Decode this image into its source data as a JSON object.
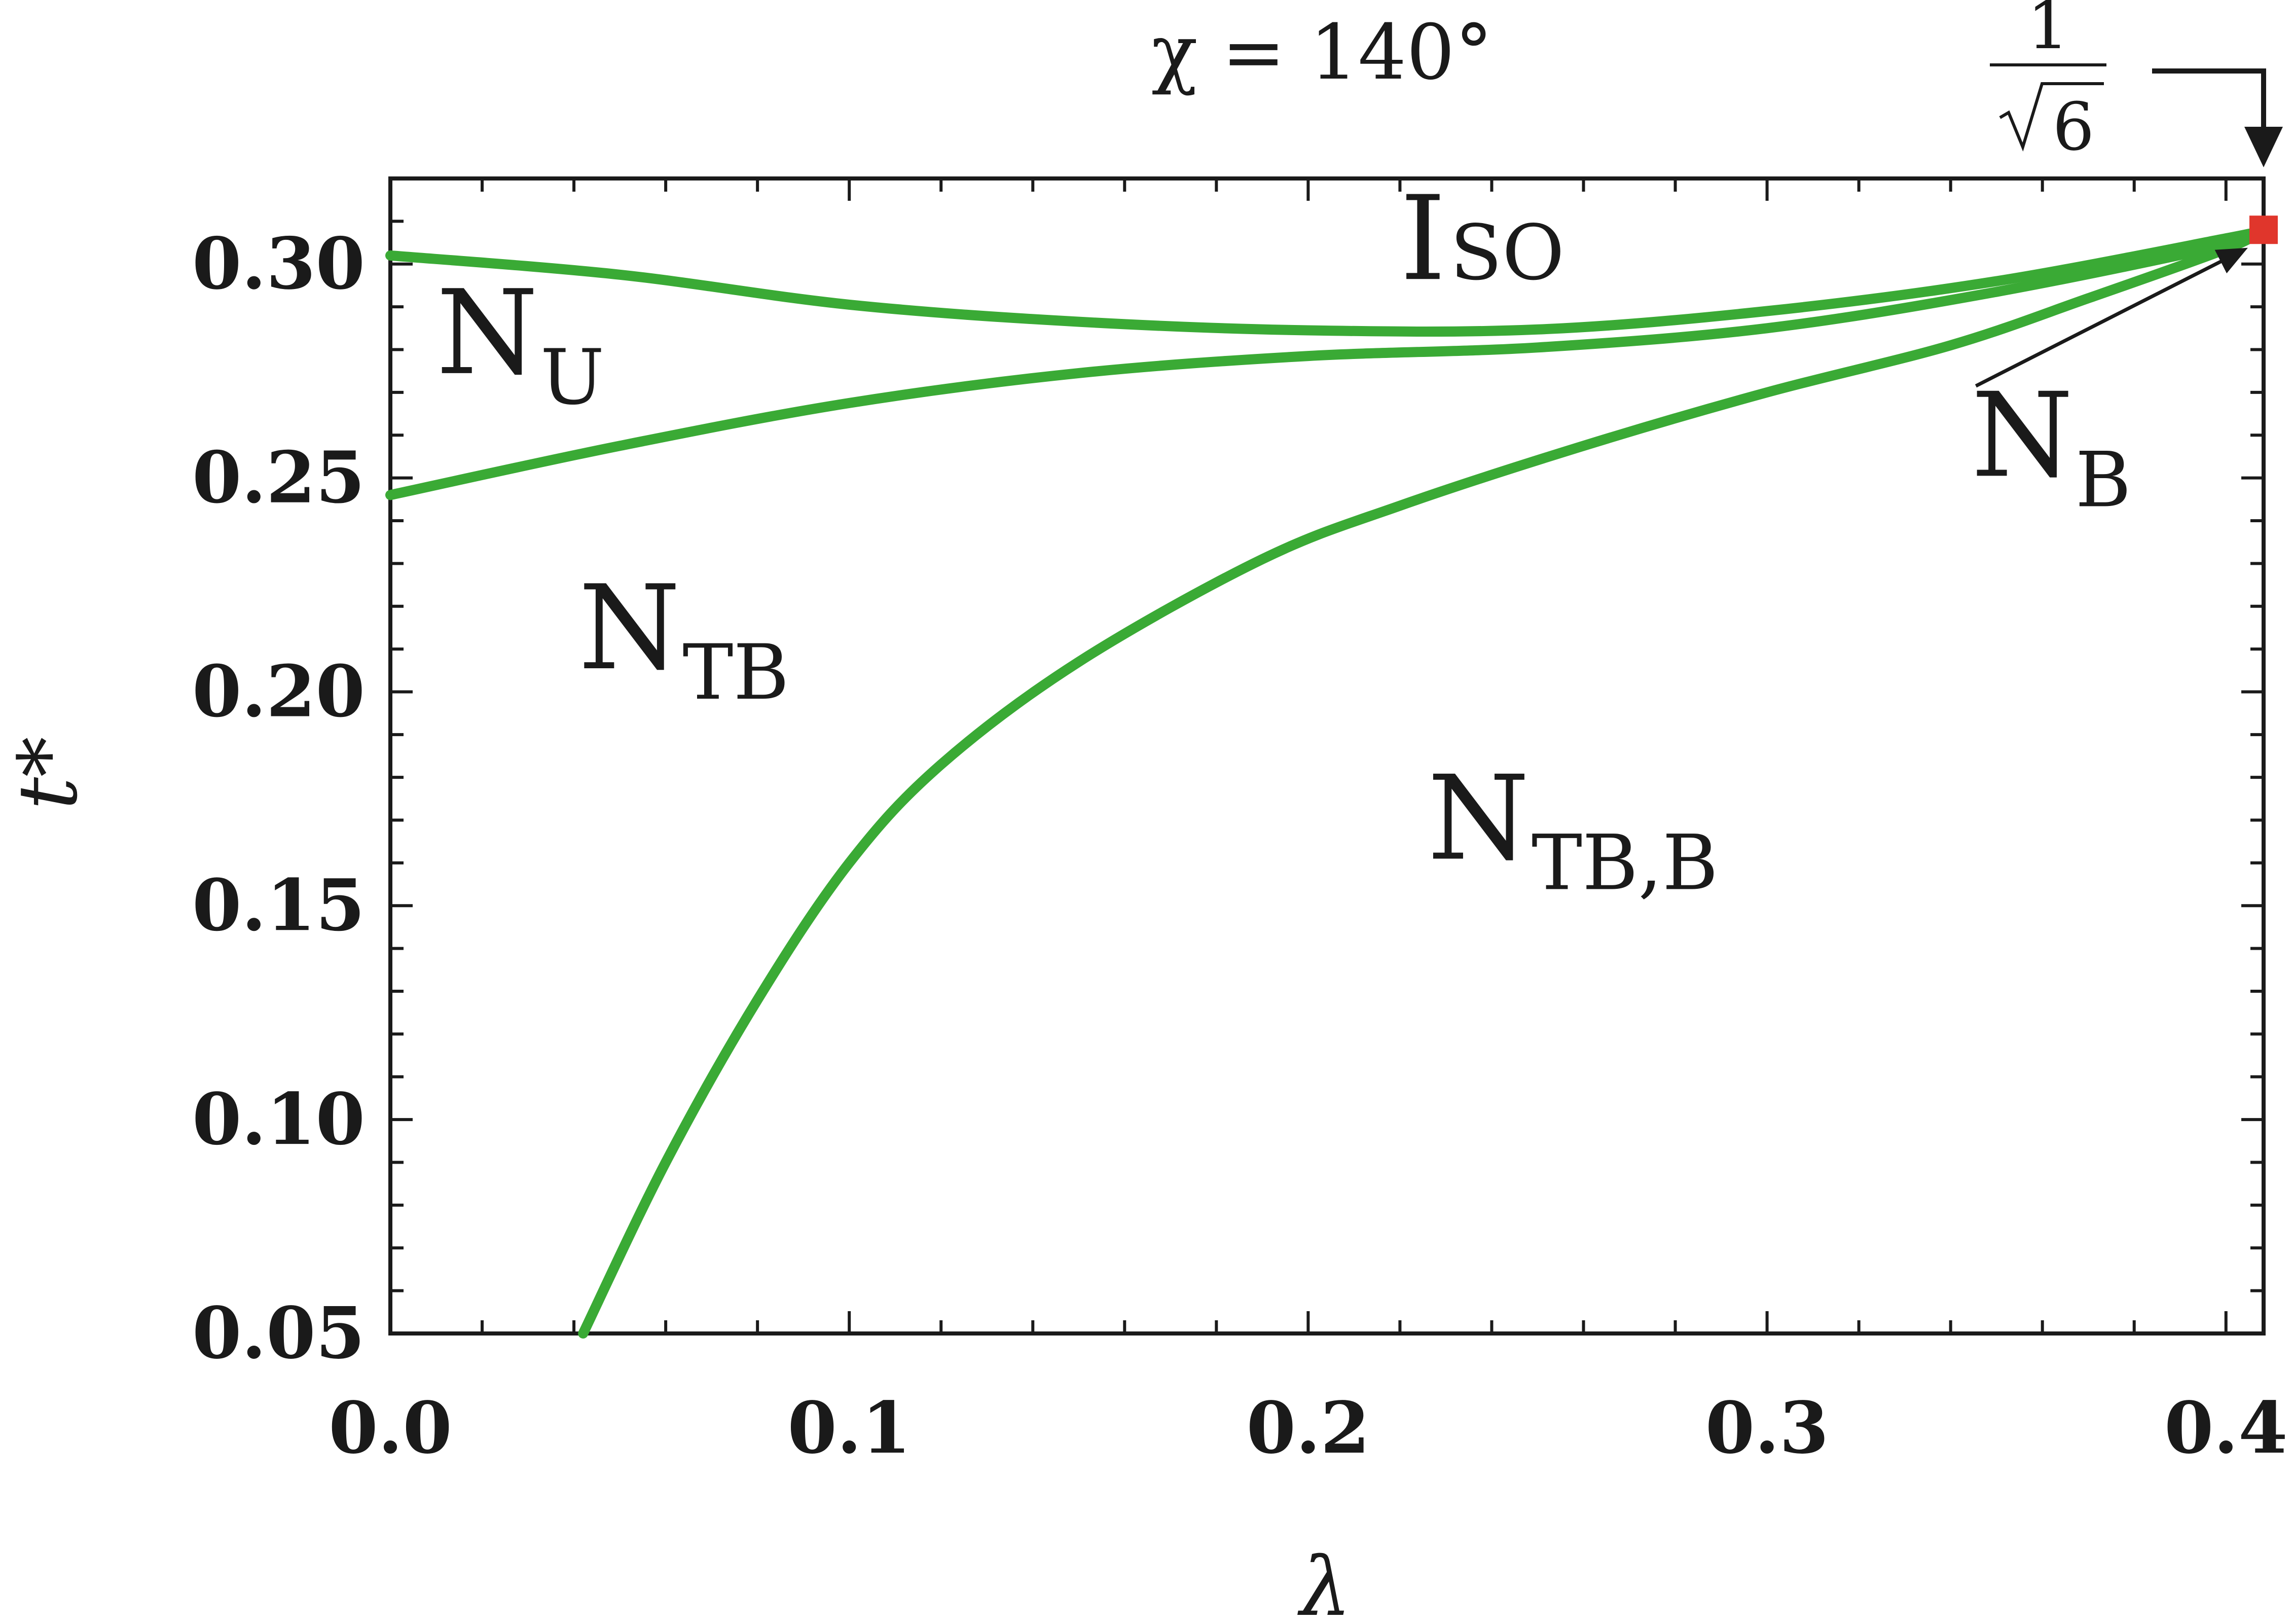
{
  "chart_data": {
    "type": "line",
    "title": "χ = 140°",
    "xlabel": "λ",
    "ylabel": "t*",
    "xlim": [
      0.0,
      0.4082
    ],
    "ylim": [
      0.05,
      0.32
    ],
    "xticks": [
      {
        "value": 0.0,
        "label": "0.0"
      },
      {
        "value": 0.1,
        "label": "0.1"
      },
      {
        "value": 0.2,
        "label": "0.2"
      },
      {
        "value": 0.3,
        "label": "0.3"
      },
      {
        "value": 0.4,
        "label": "0.4"
      }
    ],
    "yticks": [
      {
        "value": 0.05,
        "label": "0.05"
      },
      {
        "value": 0.1,
        "label": "0.10"
      },
      {
        "value": 0.15,
        "label": "0.15"
      },
      {
        "value": 0.2,
        "label": "0.20"
      },
      {
        "value": 0.25,
        "label": "0.25"
      },
      {
        "value": 0.3,
        "label": "0.30"
      }
    ],
    "series": [
      {
        "key": "upper",
        "color": "#3aaa35",
        "points": [
          [
            0.0,
            0.302
          ],
          [
            0.05,
            0.2975
          ],
          [
            0.1,
            0.2905
          ],
          [
            0.15,
            0.2865
          ],
          [
            0.2,
            0.2845
          ],
          [
            0.25,
            0.2847
          ],
          [
            0.3,
            0.289
          ],
          [
            0.35,
            0.296
          ],
          [
            0.4,
            0.306
          ],
          [
            0.4082,
            0.308
          ]
        ]
      },
      {
        "key": "middle",
        "color": "#3aaa35",
        "points": [
          [
            0.0,
            0.246
          ],
          [
            0.05,
            0.2575
          ],
          [
            0.1,
            0.2675
          ],
          [
            0.15,
            0.2745
          ],
          [
            0.2,
            0.2785
          ],
          [
            0.25,
            0.2805
          ],
          [
            0.3,
            0.285
          ],
          [
            0.35,
            0.2935
          ],
          [
            0.4,
            0.3045
          ],
          [
            0.4082,
            0.308
          ]
        ]
      },
      {
        "key": "lower",
        "color": "#3aaa35",
        "points": [
          [
            0.042,
            0.05
          ],
          [
            0.06,
            0.09
          ],
          [
            0.08,
            0.128
          ],
          [
            0.1,
            0.16
          ],
          [
            0.12,
            0.183
          ],
          [
            0.15,
            0.207
          ],
          [
            0.19,
            0.231
          ],
          [
            0.22,
            0.2435
          ],
          [
            0.26,
            0.2575
          ],
          [
            0.3,
            0.27
          ],
          [
            0.34,
            0.281
          ],
          [
            0.37,
            0.292
          ],
          [
            0.4,
            0.3035
          ],
          [
            0.4082,
            0.308
          ]
        ]
      }
    ],
    "special_point": {
      "x": 0.4082,
      "y": 0.308,
      "color": "#e0362c"
    },
    "phase_labels": [
      {
        "main": "I",
        "sub": "SO",
        "x": 0.22,
        "y": 0.2965,
        "sub_inline": true
      },
      {
        "main": "N",
        "sub": "U",
        "x": 0.01,
        "y": 0.2745
      },
      {
        "main": "N",
        "sub": "TB",
        "x": 0.041,
        "y": 0.2055
      },
      {
        "main": "N",
        "sub": "TB,B",
        "x": 0.226,
        "y": 0.161
      },
      {
        "main": "N",
        "sub": "B",
        "x": 0.3445,
        "y": 0.2505
      }
    ],
    "top_annotation": {
      "numerator": "1",
      "denominator": "6",
      "x": 0.4082
    }
  }
}
